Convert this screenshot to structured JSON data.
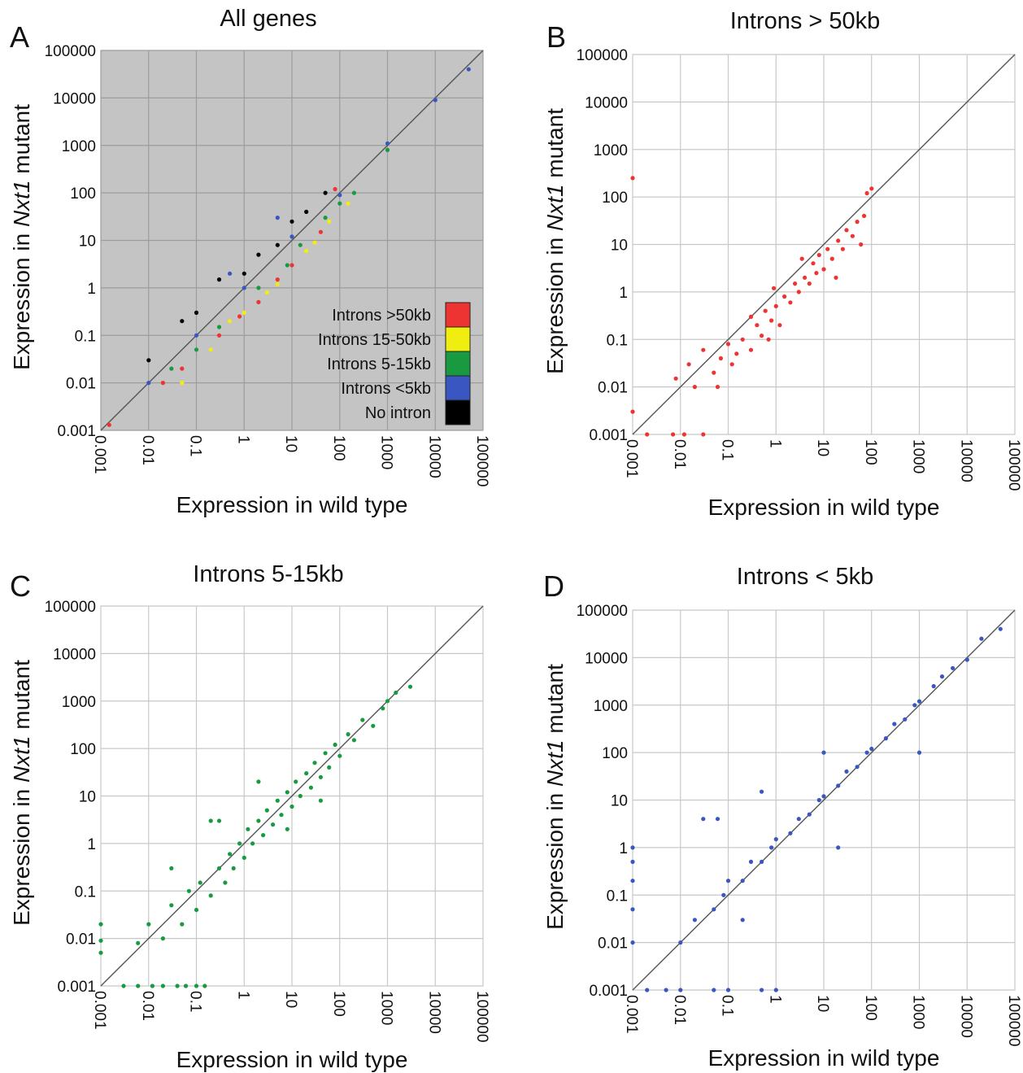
{
  "chart_data": [
    {
      "panel_label": "A",
      "type": "scatter",
      "title": "All genes",
      "xlabel": "Expression in wild type",
      "ylabel_parts": [
        "Expression in ",
        "Nxt1",
        " mutant"
      ],
      "xscale": "log",
      "yscale": "log",
      "xlim": [
        0.001,
        100000
      ],
      "ylim": [
        0.001,
        100000
      ],
      "ticks": [
        "0.001",
        "0.01",
        "0.1",
        "1",
        "10",
        "100",
        "1000",
        "10000",
        "100000"
      ],
      "background": "#c4c4c4",
      "grid": true,
      "diagonal": "y = x",
      "legend": {
        "placement": "bottom-right",
        "entries": [
          {
            "label": "Introns >50kb",
            "color": "#ee3333"
          },
          {
            "label": "Introns 15-50kb",
            "color": "#f0ee10"
          },
          {
            "label": "Introns 5-15kb",
            "color": "#1a9a40"
          },
          {
            "label": "Introns <5kb",
            "color": "#3a56c0"
          },
          {
            "label": "No intron",
            "color": "#000000"
          }
        ]
      },
      "series": [
        {
          "name": "Introns >50kb",
          "color": "#ee3333",
          "points": [
            [
              0.0015,
              0.0013
            ],
            [
              0.05,
              0.02
            ],
            [
              0.3,
              0.1
            ],
            [
              2,
              0.5
            ],
            [
              10,
              3
            ],
            [
              40,
              15
            ],
            [
              80,
              120
            ],
            [
              0.02,
              0.01
            ],
            [
              5,
              1.5
            ],
            [
              0.8,
              0.25
            ]
          ]
        },
        {
          "name": "Introns 15-50kb",
          "color": "#f0ee10",
          "points": [
            [
              0.05,
              0.01
            ],
            [
              0.2,
              0.05
            ],
            [
              1,
              0.3
            ],
            [
              5,
              1.2
            ],
            [
              20,
              6
            ],
            [
              60,
              25
            ],
            [
              150,
              60
            ],
            [
              0.5,
              0.2
            ],
            [
              3,
              0.8
            ],
            [
              30,
              9
            ]
          ]
        },
        {
          "name": "Introns 5-15kb",
          "color": "#1a9a40",
          "points": [
            [
              0.03,
              0.02
            ],
            [
              0.3,
              0.15
            ],
            [
              2,
              1
            ],
            [
              15,
              8
            ],
            [
              50,
              30
            ],
            [
              200,
              100
            ],
            [
              1000,
              800
            ],
            [
              0.1,
              0.05
            ],
            [
              8,
              3
            ],
            [
              100,
              60
            ]
          ]
        },
        {
          "name": "Introns <5kb",
          "color": "#3a56c0",
          "points": [
            [
              0.01,
              0.01
            ],
            [
              0.1,
              0.1
            ],
            [
              1,
              1
            ],
            [
              10,
              12
            ],
            [
              100,
              90
            ],
            [
              1000,
              1100
            ],
            [
              10000,
              9000
            ],
            [
              50000,
              40000
            ],
            [
              0.5,
              2
            ],
            [
              5,
              30
            ]
          ]
        },
        {
          "name": "No intron",
          "color": "#000000",
          "points": [
            [
              0.01,
              0.03
            ],
            [
              0.1,
              0.3
            ],
            [
              1,
              2
            ],
            [
              5,
              8
            ],
            [
              20,
              40
            ],
            [
              50,
              100
            ],
            [
              0.3,
              1.5
            ],
            [
              2,
              5
            ],
            [
              10,
              25
            ],
            [
              0.05,
              0.2
            ]
          ]
        }
      ]
    },
    {
      "panel_label": "B",
      "type": "scatter",
      "title": "Introns > 50kb",
      "xlabel": "Expression in wild type",
      "ylabel_parts": [
        "Expression in ",
        "Nxt1",
        " mutant"
      ],
      "xscale": "log",
      "yscale": "log",
      "xlim": [
        0.001,
        100000
      ],
      "ylim": [
        0.001,
        100000
      ],
      "ticks": [
        "0.001",
        "0.01",
        "0.1",
        "1",
        "10",
        "100",
        "1000",
        "10000",
        "100000"
      ],
      "background": "#ffffff",
      "grid": true,
      "diagonal": "y = x",
      "series": [
        {
          "color": "#ee3333",
          "points": [
            [
              0.001,
              0.003
            ],
            [
              0.001,
              250
            ],
            [
              0.002,
              0.001
            ],
            [
              0.007,
              0.001
            ],
            [
              0.012,
              0.001
            ],
            [
              0.03,
              0.001
            ],
            [
              0.008,
              0.015
            ],
            [
              0.015,
              0.03
            ],
            [
              0.02,
              0.01
            ],
            [
              0.03,
              0.06
            ],
            [
              0.05,
              0.02
            ],
            [
              0.07,
              0.04
            ],
            [
              0.1,
              0.08
            ],
            [
              0.12,
              0.03
            ],
            [
              0.2,
              0.1
            ],
            [
              0.3,
              0.06
            ],
            [
              0.4,
              0.2
            ],
            [
              0.5,
              0.12
            ],
            [
              0.6,
              0.4
            ],
            [
              0.8,
              0.25
            ],
            [
              1,
              0.5
            ],
            [
              1.2,
              0.2
            ],
            [
              1.5,
              0.8
            ],
            [
              2,
              0.6
            ],
            [
              2.5,
              1.5
            ],
            [
              3,
              1
            ],
            [
              4,
              2
            ],
            [
              5,
              1.5
            ],
            [
              6,
              4
            ],
            [
              7,
              2.5
            ],
            [
              8,
              6
            ],
            [
              10,
              3
            ],
            [
              12,
              8
            ],
            [
              15,
              5
            ],
            [
              20,
              12
            ],
            [
              25,
              8
            ],
            [
              30,
              20
            ],
            [
              40,
              15
            ],
            [
              50,
              30
            ],
            [
              60,
              10
            ],
            [
              70,
              40
            ],
            [
              80,
              120
            ],
            [
              100,
              150
            ],
            [
              0.06,
              0.01
            ],
            [
              0.3,
              0.3
            ],
            [
              0.9,
              1.2
            ],
            [
              3.5,
              5
            ],
            [
              0.15,
              0.05
            ],
            [
              0.7,
              0.1
            ],
            [
              18,
              2
            ]
          ]
        }
      ]
    },
    {
      "panel_label": "C",
      "type": "scatter",
      "title": "Introns 5-15kb",
      "xlabel": "Expression in wild type",
      "ylabel_parts": [
        "Expression in ",
        "Nxt1",
        " mutant"
      ],
      "xscale": "log",
      "yscale": "log",
      "xlim": [
        0.001,
        100000
      ],
      "ylim": [
        0.001,
        100000
      ],
      "ticks": [
        "0.001",
        "0.01",
        "0.1",
        "1",
        "10",
        "100",
        "1000",
        "10000",
        "100000"
      ],
      "background": "#ffffff",
      "grid": true,
      "diagonal": "y = x",
      "series": [
        {
          "color": "#1a9a40",
          "points": [
            [
              0.001,
              0.02
            ],
            [
              0.001,
              0.005
            ],
            [
              0.001,
              0.009
            ],
            [
              0.003,
              0.001
            ],
            [
              0.006,
              0.001
            ],
            [
              0.012,
              0.001
            ],
            [
              0.02,
              0.001
            ],
            [
              0.04,
              0.001
            ],
            [
              0.06,
              0.001
            ],
            [
              0.1,
              0.001
            ],
            [
              0.15,
              0.001
            ],
            [
              0.006,
              0.008
            ],
            [
              0.01,
              0.02
            ],
            [
              0.02,
              0.01
            ],
            [
              0.03,
              0.05
            ],
            [
              0.05,
              0.02
            ],
            [
              0.07,
              0.1
            ],
            [
              0.1,
              0.04
            ],
            [
              0.12,
              0.15
            ],
            [
              0.2,
              0.08
            ],
            [
              0.3,
              0.3
            ],
            [
              0.4,
              0.15
            ],
            [
              0.5,
              0.6
            ],
            [
              0.6,
              0.3
            ],
            [
              0.8,
              1
            ],
            [
              1,
              0.5
            ],
            [
              1.2,
              2
            ],
            [
              1.5,
              1
            ],
            [
              2,
              3
            ],
            [
              2.5,
              1.5
            ],
            [
              3,
              5
            ],
            [
              4,
              2.5
            ],
            [
              5,
              8
            ],
            [
              6,
              4
            ],
            [
              8,
              12
            ],
            [
              10,
              6
            ],
            [
              12,
              20
            ],
            [
              15,
              10
            ],
            [
              20,
              30
            ],
            [
              25,
              15
            ],
            [
              30,
              50
            ],
            [
              40,
              25
            ],
            [
              50,
              80
            ],
            [
              60,
              40
            ],
            [
              80,
              120
            ],
            [
              100,
              70
            ],
            [
              150,
              200
            ],
            [
              200,
              150
            ],
            [
              300,
              400
            ],
            [
              500,
              300
            ],
            [
              800,
              700
            ],
            [
              1000,
              1000
            ],
            [
              1500,
              1500
            ],
            [
              3000,
              2000
            ],
            [
              0.2,
              3
            ],
            [
              0.3,
              3
            ],
            [
              2,
              20
            ],
            [
              0.03,
              0.3
            ],
            [
              40,
              8
            ],
            [
              8,
              2
            ]
          ]
        }
      ]
    },
    {
      "panel_label": "D",
      "type": "scatter",
      "title": "Introns < 5kb",
      "xlabel": "Expression in wild type",
      "ylabel_parts": [
        "Expression in ",
        "Nxt1",
        " mutant"
      ],
      "xscale": "log",
      "yscale": "log",
      "xlim": [
        0.001,
        100000
      ],
      "ylim": [
        0.001,
        100000
      ],
      "ticks": [
        "0.001",
        "0.01",
        "0.1",
        "1",
        "10",
        "100",
        "1000",
        "10000",
        "100000"
      ],
      "background": "#ffffff",
      "grid": true,
      "diagonal": "y = x",
      "series": [
        {
          "color": "#3a56c0",
          "points": [
            [
              0.001,
              0.01
            ],
            [
              0.001,
              0.05
            ],
            [
              0.001,
              0.2
            ],
            [
              0.001,
              0.5
            ],
            [
              0.001,
              1
            ],
            [
              0.002,
              0.001
            ],
            [
              0.005,
              0.001
            ],
            [
              0.01,
              0.001
            ],
            [
              0.05,
              0.001
            ],
            [
              0.1,
              0.001
            ],
            [
              0.5,
              0.001
            ],
            [
              1,
              0.001
            ],
            [
              0.01,
              0.01
            ],
            [
              0.02,
              0.03
            ],
            [
              0.05,
              0.05
            ],
            [
              0.08,
              0.1
            ],
            [
              0.1,
              0.2
            ],
            [
              0.2,
              0.2
            ],
            [
              0.3,
              0.5
            ],
            [
              0.5,
              0.5
            ],
            [
              0.8,
              1
            ],
            [
              1,
              1.5
            ],
            [
              2,
              2
            ],
            [
              3,
              4
            ],
            [
              5,
              5
            ],
            [
              8,
              10
            ],
            [
              10,
              12
            ],
            [
              20,
              20
            ],
            [
              30,
              40
            ],
            [
              50,
              50
            ],
            [
              80,
              100
            ],
            [
              100,
              120
            ],
            [
              200,
              200
            ],
            [
              300,
              400
            ],
            [
              500,
              500
            ],
            [
              800,
              1000
            ],
            [
              1000,
              1200
            ],
            [
              2000,
              2500
            ],
            [
              3000,
              4000
            ],
            [
              5000,
              6000
            ],
            [
              10000,
              9000
            ],
            [
              20000,
              25000
            ],
            [
              50000,
              40000
            ],
            [
              0.03,
              4
            ],
            [
              0.06,
              4
            ],
            [
              0.5,
              15
            ],
            [
              10,
              100
            ],
            [
              0.2,
              0.03
            ],
            [
              20,
              1
            ],
            [
              1000,
              100
            ]
          ]
        }
      ]
    }
  ]
}
